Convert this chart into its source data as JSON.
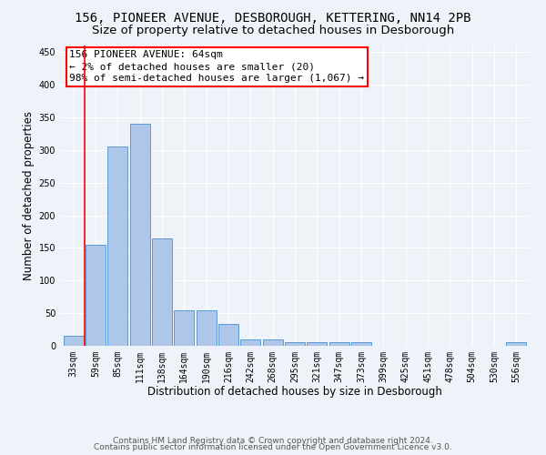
{
  "title_line1": "156, PIONEER AVENUE, DESBOROUGH, KETTERING, NN14 2PB",
  "title_line2": "Size of property relative to detached houses in Desborough",
  "xlabel": "Distribution of detached houses by size in Desborough",
  "ylabel": "Number of detached properties",
  "bar_color": "#aec6e8",
  "bar_edge_color": "#5b9bd5",
  "categories": [
    "33sqm",
    "59sqm",
    "85sqm",
    "111sqm",
    "138sqm",
    "164sqm",
    "190sqm",
    "216sqm",
    "242sqm",
    "268sqm",
    "295sqm",
    "321sqm",
    "347sqm",
    "373sqm",
    "399sqm",
    "425sqm",
    "451sqm",
    "478sqm",
    "504sqm",
    "530sqm",
    "556sqm"
  ],
  "values": [
    15,
    155,
    305,
    340,
    165,
    55,
    55,
    33,
    10,
    10,
    5,
    5,
    5,
    5,
    0,
    0,
    0,
    0,
    0,
    0,
    5
  ],
  "ylim": [
    0,
    460
  ],
  "yticks": [
    0,
    50,
    100,
    150,
    200,
    250,
    300,
    350,
    400,
    450
  ],
  "annotation_text": "156 PIONEER AVENUE: 64sqm\n← 2% of detached houses are smaller (20)\n98% of semi-detached houses are larger (1,067) →",
  "vline_x": 0.5,
  "footer_line1": "Contains HM Land Registry data © Crown copyright and database right 2024.",
  "footer_line2": "Contains public sector information licensed under the Open Government Licence v3.0.",
  "background_color": "#eef2f9",
  "grid_color": "#ffffff",
  "title_fontsize": 10,
  "subtitle_fontsize": 9.5,
  "axis_label_fontsize": 8.5,
  "tick_fontsize": 7,
  "annotation_fontsize": 8,
  "footer_fontsize": 6.5
}
